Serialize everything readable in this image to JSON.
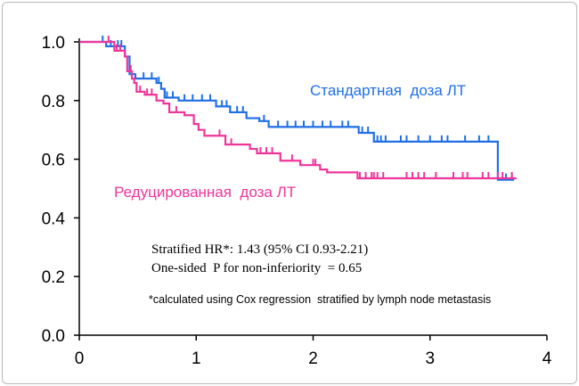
{
  "chart_data": {
    "type": "line",
    "subtype": "kaplan-meier",
    "xlim": [
      0,
      4
    ],
    "ylim": [
      0,
      1.0
    ],
    "x_ticks": [
      "0",
      "1",
      "2",
      "3",
      "4"
    ],
    "y_ticks": [
      "0.0",
      "0.2",
      "0.4",
      "0.6",
      "0.8",
      "1.0"
    ],
    "x_tick_values": [
      0,
      1,
      2,
      3,
      4
    ],
    "y_tick_values": [
      0,
      0.2,
      0.4,
      0.6,
      0.8,
      1.0
    ],
    "grid": false,
    "series": [
      {
        "name": "Стандартная  доза ЛТ",
        "color": "#1f6fe6",
        "steps": [
          [
            0,
            1.0
          ],
          [
            0.23,
            0.985
          ],
          [
            0.39,
            0.95
          ],
          [
            0.43,
            0.89
          ],
          [
            0.48,
            0.875
          ],
          [
            0.66,
            0.86
          ],
          [
            0.7,
            0.84
          ],
          [
            0.73,
            0.81
          ],
          [
            0.85,
            0.8
          ],
          [
            1.17,
            0.78
          ],
          [
            1.29,
            0.76
          ],
          [
            1.43,
            0.74
          ],
          [
            1.54,
            0.73
          ],
          [
            1.62,
            0.71
          ],
          [
            2.39,
            0.69
          ],
          [
            2.52,
            0.66
          ],
          [
            3.58,
            0.53
          ],
          [
            3.72,
            0.53
          ]
        ],
        "censored": [
          0.2,
          0.27,
          0.33,
          0.36,
          0.55,
          0.62,
          0.68,
          0.75,
          0.8,
          0.9,
          0.97,
          1.05,
          1.12,
          1.22,
          1.26,
          1.35,
          1.4,
          1.58,
          1.7,
          1.78,
          1.85,
          1.92,
          2.0,
          2.08,
          2.15,
          2.25,
          2.3,
          2.42,
          2.47,
          2.55,
          2.58,
          2.62,
          2.75,
          2.8,
          2.9,
          3.0,
          3.1,
          3.15,
          3.3,
          3.42,
          3.5,
          3.65,
          3.7
        ]
      },
      {
        "name": "Редуцированная  доза ЛТ",
        "color": "#f0359a",
        "steps": [
          [
            0,
            1.0
          ],
          [
            0.3,
            0.97
          ],
          [
            0.39,
            0.95
          ],
          [
            0.41,
            0.9
          ],
          [
            0.45,
            0.875
          ],
          [
            0.47,
            0.86
          ],
          [
            0.49,
            0.83
          ],
          [
            0.56,
            0.82
          ],
          [
            0.66,
            0.8
          ],
          [
            0.72,
            0.79
          ],
          [
            0.77,
            0.76
          ],
          [
            0.9,
            0.75
          ],
          [
            0.98,
            0.72
          ],
          [
            1.02,
            0.7
          ],
          [
            1.07,
            0.68
          ],
          [
            1.25,
            0.65
          ],
          [
            1.46,
            0.635
          ],
          [
            1.52,
            0.62
          ],
          [
            1.72,
            0.595
          ],
          [
            1.89,
            0.58
          ],
          [
            2.06,
            0.565
          ],
          [
            2.12,
            0.555
          ],
          [
            2.38,
            0.535
          ],
          [
            3.74,
            0.535
          ]
        ],
        "censored": [
          0.25,
          0.32,
          0.35,
          0.44,
          0.52,
          0.58,
          0.62,
          0.83,
          1.2,
          1.3,
          1.55,
          1.6,
          1.65,
          1.82,
          2.0,
          2.02,
          2.4,
          2.45,
          2.5,
          2.52,
          2.55,
          2.6,
          2.8,
          2.85,
          2.9,
          2.95,
          3.05,
          3.2,
          3.28,
          3.32,
          3.45,
          3.5,
          3.58,
          3.62,
          3.7
        ]
      }
    ],
    "annotations": {
      "hr": "Stratified HR*: 1.43 (95% CI 0.93-2.21)",
      "p": "One-sided  P for non-inferiority  = 0.65",
      "footnote": "*calculated using Cox regression  stratified by lymph node metastasis"
    }
  }
}
